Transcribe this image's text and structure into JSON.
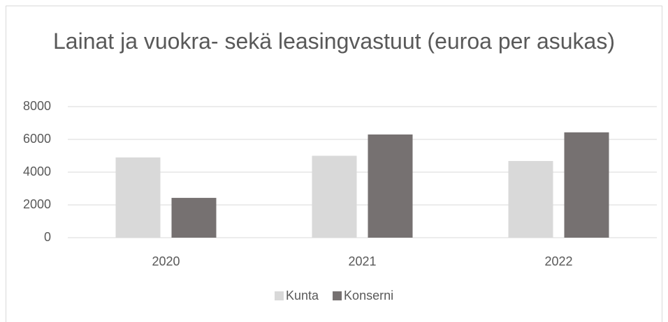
{
  "chart_data": {
    "type": "bar",
    "title": "Lainat ja vuokra- sekä leasingvastuut (euroa per asukas)",
    "categories": [
      "2020",
      "2021",
      "2022"
    ],
    "series": [
      {
        "name": "Kunta",
        "color": "#d9d9d9",
        "values": [
          4900,
          5000,
          4680
        ]
      },
      {
        "name": "Konserni",
        "color": "#767171",
        "values": [
          2430,
          6300,
          6430
        ]
      }
    ],
    "ylim": [
      0,
      8000
    ],
    "yticks": [
      0,
      2000,
      4000,
      6000,
      8000
    ],
    "grid": true,
    "legend": "bottom"
  }
}
